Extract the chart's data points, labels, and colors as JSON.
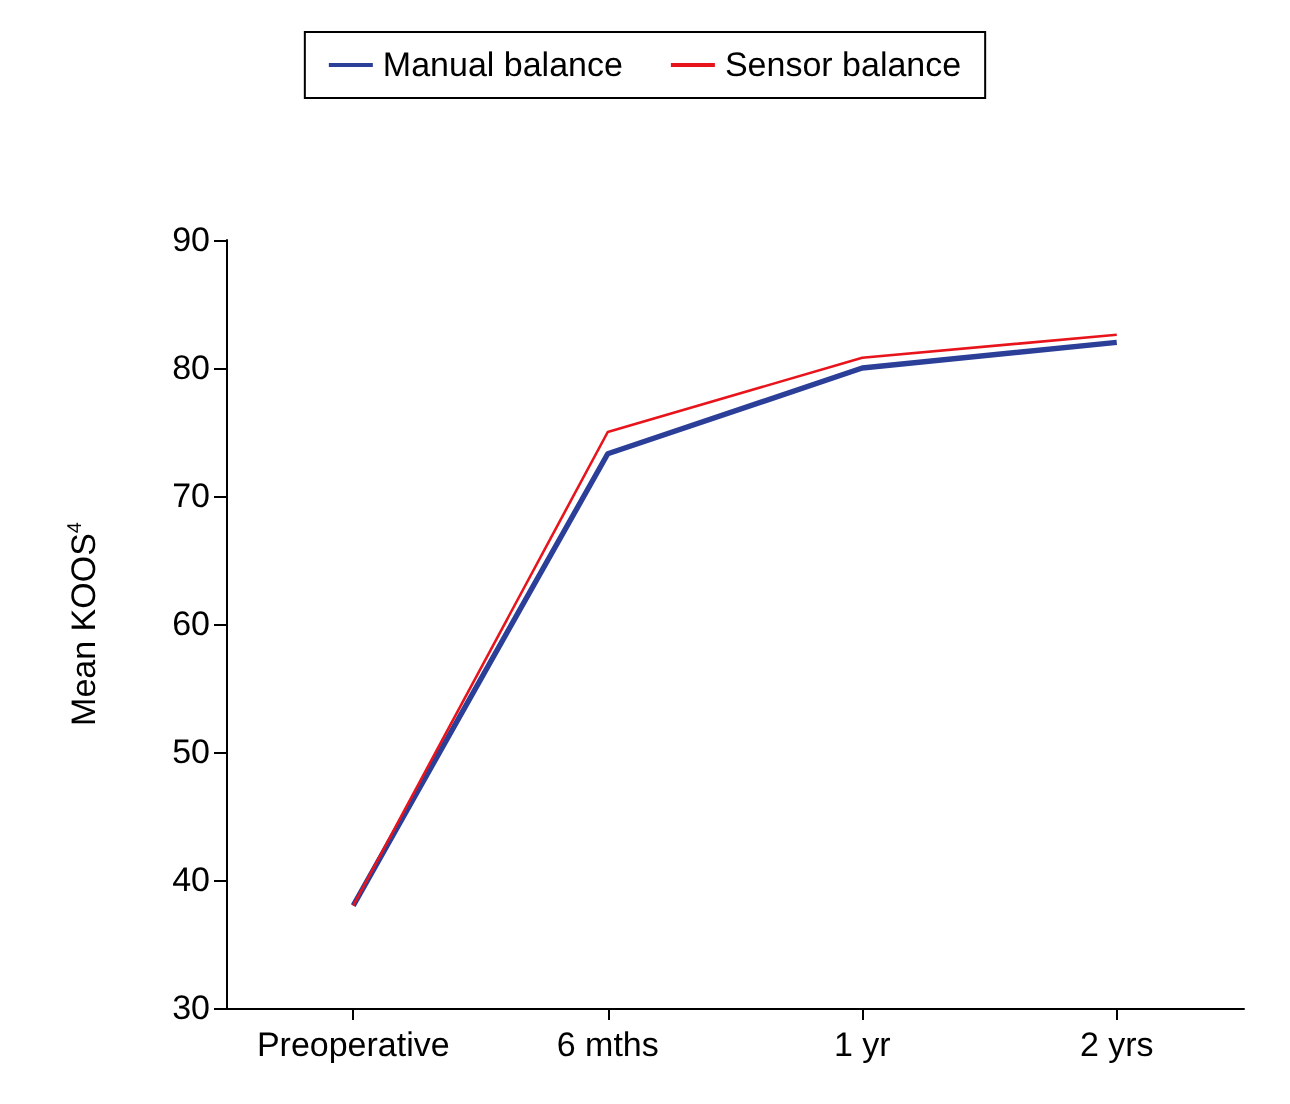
{
  "chart_data": {
    "type": "line",
    "ylabel": "Mean KOOS$^{4}$",
    "categories": [
      "Preoperative",
      "6 mths",
      "1 yr",
      "2 yrs"
    ],
    "series": [
      {
        "name": "Manual balance",
        "color": "#2b3f99",
        "values": [
          38,
          73.3,
          80,
          82
        ]
      },
      {
        "name": "Sensor balance",
        "color": "#e8141c",
        "values": [
          38,
          75,
          80.8,
          82.6
        ]
      }
    ],
    "ylim": [
      30,
      90
    ],
    "yticks": [
      30,
      40,
      50,
      60,
      70,
      80,
      90
    ],
    "grid": false,
    "legend": "top",
    "marker": "none",
    "line_style": "solid"
  }
}
